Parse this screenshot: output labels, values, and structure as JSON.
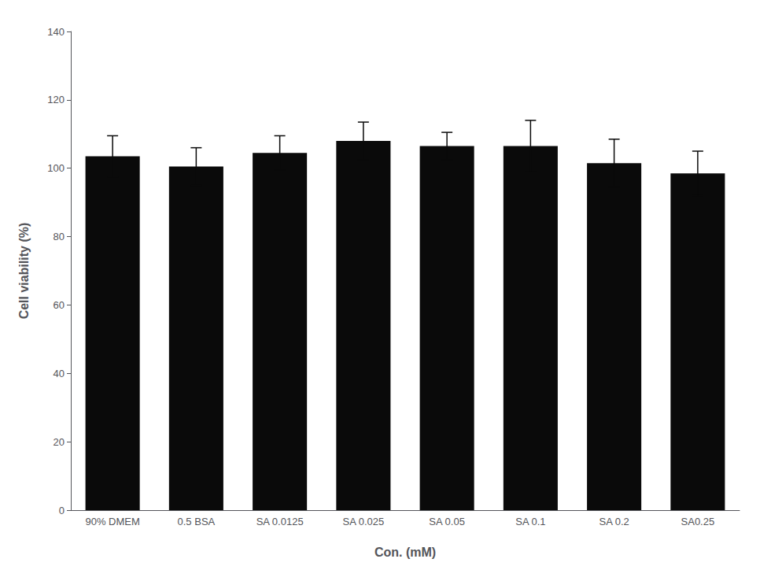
{
  "chart_data": {
    "type": "bar",
    "categories": [
      "90% DMEM",
      "0.5 BSA",
      "SA 0.0125",
      "SA 0.025",
      "SA 0.05",
      "SA 0.1",
      "SA 0.2",
      "SA0.25"
    ],
    "values": [
      103.5,
      100.5,
      104.5,
      108.0,
      106.5,
      106.5,
      101.5,
      98.5
    ],
    "errors": [
      6.0,
      5.5,
      5.0,
      5.5,
      4.0,
      7.5,
      7.0,
      6.5
    ],
    "color": "#0a0a0a",
    "xlabel": "Con. (mM)",
    "ylabel": "Cell viability (%)",
    "ylim": [
      0,
      140
    ],
    "yticks": [
      0,
      20,
      40,
      60,
      80,
      100,
      120,
      140
    ],
    "grid": false
  }
}
